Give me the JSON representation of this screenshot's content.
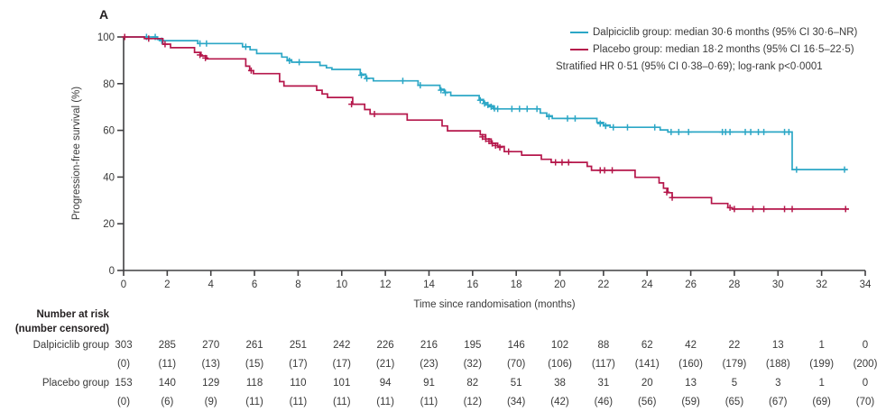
{
  "panel_label": "A",
  "colors": {
    "dalpiciclib": "#2ca7c6",
    "placebo": "#b5174b",
    "axis": "#414042",
    "text": "#3a3a3a"
  },
  "legend": {
    "entries": [
      {
        "label": "Dalpiciclib group: median 30·6 months (95% CI 30·6–NR)"
      },
      {
        "label": "Placebo group: median 18·2 months (95% CI 16·5–22·5)"
      }
    ],
    "note": "Stratified HR 0·51 (95% CI 0·38–0·69); log-rank p<0·0001"
  },
  "chart_data": {
    "type": "line",
    "subtype": "kaplan-meier-step",
    "title": "A",
    "xlabel": "Time since randomisation (months)",
    "ylabel": "Progression-free survival (%)",
    "xlim": [
      0,
      34
    ],
    "ylim": [
      0,
      100
    ],
    "x_ticks": [
      0,
      2,
      4,
      6,
      8,
      10,
      12,
      14,
      16,
      18,
      20,
      22,
      24,
      26,
      28,
      30,
      32,
      34
    ],
    "y_ticks": [
      0,
      20,
      40,
      60,
      80,
      100
    ],
    "grid": false,
    "legend_position": "top-right",
    "series": [
      {
        "name": "Dalpiciclib group",
        "color": "#2ca7c6",
        "steps": [
          [
            0,
            100
          ],
          [
            1.55,
            98.9
          ],
          [
            1.8,
            98.4
          ],
          [
            3.4,
            97.2
          ],
          [
            5.45,
            95.8
          ],
          [
            5.8,
            94.5
          ],
          [
            6.1,
            92.9
          ],
          [
            7.25,
            91.4
          ],
          [
            7.5,
            90.2
          ],
          [
            7.7,
            89.2
          ],
          [
            9.0,
            87.8
          ],
          [
            9.3,
            86.8
          ],
          [
            9.55,
            86.1
          ],
          [
            10.85,
            84.0
          ],
          [
            11.1,
            82.3
          ],
          [
            11.45,
            81.2
          ],
          [
            13.5,
            79.3
          ],
          [
            14.5,
            77.6
          ],
          [
            14.7,
            76.3
          ],
          [
            15.0,
            74.9
          ],
          [
            16.3,
            73.2
          ],
          [
            16.5,
            71.8
          ],
          [
            16.7,
            70.5
          ],
          [
            16.95,
            69.2
          ],
          [
            19.1,
            67.4
          ],
          [
            19.4,
            66.2
          ],
          [
            19.65,
            65.1
          ],
          [
            21.7,
            63.4
          ],
          [
            22.0,
            62.2
          ],
          [
            22.3,
            61.3
          ],
          [
            24.6,
            60.2
          ],
          [
            24.95,
            59.3
          ],
          [
            30.65,
            43.2
          ],
          [
            33.2,
            43.2
          ]
        ],
        "censors": [
          [
            1.05,
            100
          ],
          [
            1.45,
            100
          ],
          [
            1.75,
            98.4
          ],
          [
            3.5,
            97.2
          ],
          [
            3.8,
            97.2
          ],
          [
            5.6,
            95.8
          ],
          [
            7.6,
            89.8
          ],
          [
            8.05,
            89.2
          ],
          [
            10.9,
            83.6
          ],
          [
            11.15,
            82.2
          ],
          [
            12.8,
            81.2
          ],
          [
            13.6,
            79.3
          ],
          [
            14.55,
            77.2
          ],
          [
            14.75,
            76.1
          ],
          [
            16.35,
            72.9
          ],
          [
            16.55,
            71.5
          ],
          [
            16.7,
            70.9
          ],
          [
            16.85,
            70.1
          ],
          [
            17.0,
            69.4
          ],
          [
            17.15,
            69.2
          ],
          [
            17.8,
            69.2
          ],
          [
            18.15,
            69.2
          ],
          [
            18.5,
            69.2
          ],
          [
            18.95,
            69.2
          ],
          [
            19.5,
            65.9
          ],
          [
            20.35,
            65.1
          ],
          [
            20.7,
            65.1
          ],
          [
            21.85,
            62.9
          ],
          [
            22.1,
            61.9
          ],
          [
            22.45,
            61.3
          ],
          [
            23.1,
            61.3
          ],
          [
            24.35,
            61.3
          ],
          [
            25.1,
            59.3
          ],
          [
            25.45,
            59.3
          ],
          [
            25.9,
            59.3
          ],
          [
            27.45,
            59.3
          ],
          [
            27.6,
            59.3
          ],
          [
            27.8,
            59.3
          ],
          [
            28.5,
            59.3
          ],
          [
            28.75,
            59.3
          ],
          [
            29.1,
            59.3
          ],
          [
            29.35,
            59.3
          ],
          [
            30.3,
            59.3
          ],
          [
            30.5,
            59.3
          ],
          [
            30.85,
            43.2
          ],
          [
            33.05,
            43.2
          ]
        ]
      },
      {
        "name": "Placebo group",
        "color": "#b5174b",
        "steps": [
          [
            0,
            100
          ],
          [
            0.95,
            99.3
          ],
          [
            1.8,
            96.9
          ],
          [
            2.15,
            95.4
          ],
          [
            3.25,
            93.4
          ],
          [
            3.55,
            91.9
          ],
          [
            3.8,
            90.6
          ],
          [
            5.6,
            87.5
          ],
          [
            5.78,
            85.6
          ],
          [
            5.95,
            84.3
          ],
          [
            7.15,
            80.9
          ],
          [
            7.35,
            79.0
          ],
          [
            8.85,
            77.2
          ],
          [
            9.1,
            75.6
          ],
          [
            9.35,
            74.1
          ],
          [
            10.5,
            71.2
          ],
          [
            11.05,
            68.9
          ],
          [
            11.3,
            67.0
          ],
          [
            13.0,
            64.4
          ],
          [
            14.6,
            61.9
          ],
          [
            14.85,
            59.8
          ],
          [
            16.35,
            58.1
          ],
          [
            16.6,
            56.3
          ],
          [
            16.85,
            54.5
          ],
          [
            17.15,
            53.1
          ],
          [
            17.45,
            50.9
          ],
          [
            18.25,
            49.4
          ],
          [
            19.15,
            47.6
          ],
          [
            19.6,
            46.3
          ],
          [
            21.25,
            44.6
          ],
          [
            21.45,
            42.9
          ],
          [
            23.45,
            39.9
          ],
          [
            24.55,
            37.5
          ],
          [
            24.75,
            35.2
          ],
          [
            24.95,
            33.3
          ],
          [
            25.15,
            31.2
          ],
          [
            26.95,
            28.7
          ],
          [
            27.7,
            26.9
          ],
          [
            27.9,
            26.3
          ],
          [
            33.25,
            26.3
          ]
        ],
        "censors": [
          [
            0.05,
            100
          ],
          [
            1.15,
            99.3
          ],
          [
            1.9,
            96.9
          ],
          [
            3.5,
            92.3
          ],
          [
            3.75,
            91.0
          ],
          [
            5.85,
            85.6
          ],
          [
            10.45,
            71.2
          ],
          [
            11.5,
            67.0
          ],
          [
            16.45,
            57.2
          ],
          [
            16.6,
            56.3
          ],
          [
            16.75,
            55.4
          ],
          [
            16.9,
            54.4
          ],
          [
            17.05,
            53.5
          ],
          [
            17.25,
            52.7
          ],
          [
            17.65,
            50.9
          ],
          [
            19.8,
            46.3
          ],
          [
            20.1,
            46.3
          ],
          [
            20.4,
            46.3
          ],
          [
            21.85,
            42.9
          ],
          [
            22.05,
            42.9
          ],
          [
            22.4,
            42.9
          ],
          [
            24.9,
            33.5
          ],
          [
            25.15,
            31.2
          ],
          [
            27.8,
            26.9
          ],
          [
            28.0,
            26.3
          ],
          [
            28.85,
            26.3
          ],
          [
            29.35,
            26.3
          ],
          [
            30.3,
            26.3
          ],
          [
            30.65,
            26.3
          ],
          [
            33.1,
            26.3
          ]
        ]
      }
    ]
  },
  "risk_table": {
    "header_line1": "Number at risk",
    "header_line2": "(number censored)",
    "rows": [
      {
        "label": "Dalpiciclib group",
        "at_risk": [
          "303",
          "285",
          "270",
          "261",
          "251",
          "242",
          "226",
          "216",
          "195",
          "146",
          "102",
          "88",
          "62",
          "42",
          "22",
          "13",
          "1",
          "0"
        ],
        "censored": [
          "(0)",
          "(11)",
          "(13)",
          "(15)",
          "(17)",
          "(17)",
          "(21)",
          "(23)",
          "(32)",
          "(70)",
          "(106)",
          "(117)",
          "(141)",
          "(160)",
          "(179)",
          "(188)",
          "(199)",
          "(200)"
        ]
      },
      {
        "label": "Placebo group",
        "at_risk": [
          "153",
          "140",
          "129",
          "118",
          "110",
          "101",
          "94",
          "91",
          "82",
          "51",
          "38",
          "31",
          "20",
          "13",
          "5",
          "3",
          "1",
          "0"
        ],
        "censored": [
          "(0)",
          "(6)",
          "(9)",
          "(11)",
          "(11)",
          "(11)",
          "(11)",
          "(11)",
          "(12)",
          "(34)",
          "(42)",
          "(46)",
          "(56)",
          "(59)",
          "(65)",
          "(67)",
          "(69)",
          "(70)"
        ]
      }
    ]
  }
}
